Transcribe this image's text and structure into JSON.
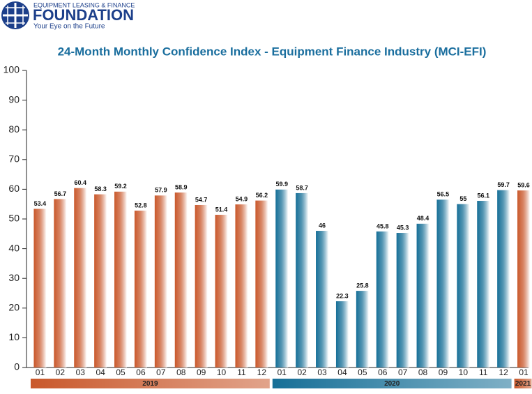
{
  "header": {
    "org_top": "EQUIPMENT LEASING & FINANCE",
    "org_name": "FOUNDATION",
    "tagline": "Your Eye on the Future"
  },
  "chart_data": {
    "type": "bar",
    "title": "24-Month Monthly Confidence Index - Equipment Finance Industry (MCI-EFI)",
    "ylim": [
      0,
      100
    ],
    "yticks": [
      0,
      10,
      20,
      30,
      40,
      50,
      60,
      70,
      80,
      90,
      100
    ],
    "groups": [
      {
        "name": "2019",
        "color": "#c9582b",
        "categories": [
          "01",
          "02",
          "03",
          "04",
          "05",
          "06",
          "07",
          "08",
          "09",
          "10",
          "11",
          "12"
        ],
        "values": [
          53.4,
          56.7,
          60.4,
          58.3,
          59.2,
          52.8,
          57.9,
          58.9,
          54.7,
          51.4,
          54.9,
          56.2
        ]
      },
      {
        "name": "2020",
        "color": "#166f97",
        "categories": [
          "01",
          "02",
          "03",
          "04",
          "05",
          "06",
          "07",
          "08",
          "09",
          "10",
          "11",
          "12"
        ],
        "values": [
          59.9,
          58.7,
          46,
          22.3,
          25.8,
          45.8,
          45.3,
          48.4,
          56.5,
          55,
          56.1,
          59.7
        ]
      },
      {
        "name": "2021",
        "color": "#c9582b",
        "categories": [
          "01"
        ],
        "values": [
          59.6
        ]
      }
    ]
  }
}
